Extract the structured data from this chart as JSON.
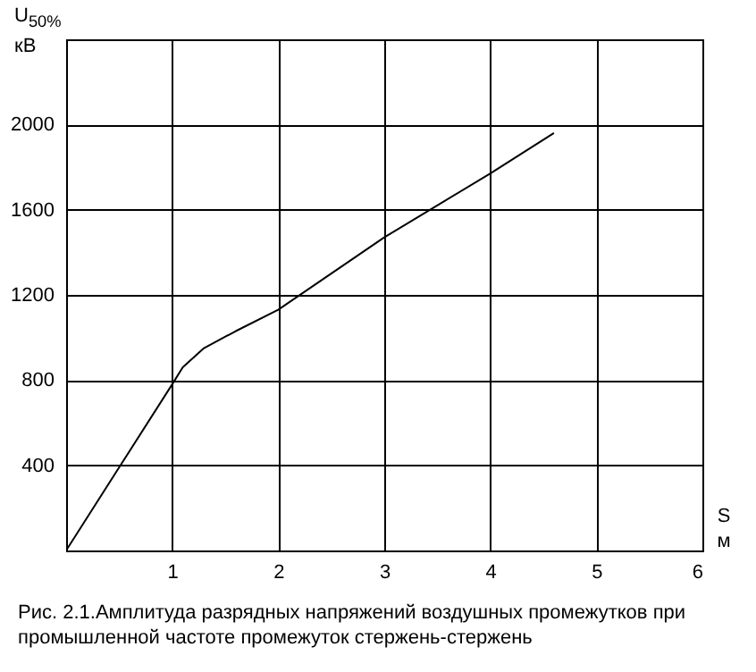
{
  "chart_data": {
    "type": "line",
    "xlabel": "S м",
    "ylabel": "U$_{50%}$ кВ",
    "annotations": [
      "Рис. 2.1.Амплитуда разрядных напряжений воздушных промежутков при промышленной частоте промежуток стержень-стержень"
    ],
    "x": [
      0,
      0.5,
      1,
      1.1,
      1.3,
      1.6,
      2,
      2.5,
      3,
      3.5,
      4,
      4.6
    ],
    "series": [
      {
        "color": "#000000",
        "values": [
          0,
          390,
          780,
          860,
          950,
          1030,
          1130,
          1300,
          1470,
          1620,
          1770,
          1960
        ]
      }
    ],
    "xlim": [
      0,
      6
    ],
    "xticks": [
      1,
      2,
      3,
      4,
      5,
      6
    ],
    "ylim": [
      0,
      2400
    ],
    "yticks": [
      400,
      800,
      1200,
      1600,
      2000
    ],
    "grid": true,
    "line_style": "solid",
    "marker": "none"
  }
}
